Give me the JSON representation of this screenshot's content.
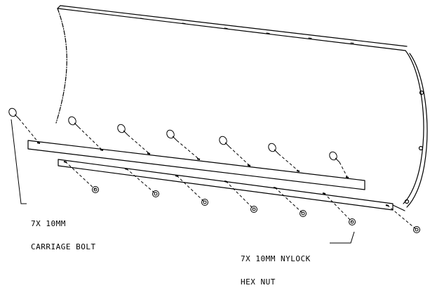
{
  "callouts": {
    "carriage_bolt": {
      "line1": "7X 10MM",
      "line2": "CARRIAGE BOLT"
    },
    "nylock_nut": {
      "line1": "7X 10MM NYLOCK",
      "line2": "HEX NUT"
    }
  },
  "colors": {
    "ink": "#000000",
    "paper": "#ffffff"
  }
}
